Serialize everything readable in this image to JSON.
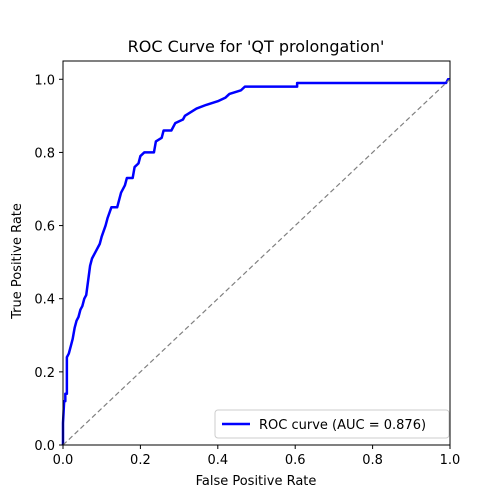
{
  "chart_data": {
    "type": "line",
    "title": "ROC Curve for 'QT prolongation'",
    "xlabel": "False Positive Rate",
    "ylabel": "True Positive Rate",
    "xlim": [
      0.0,
      1.0
    ],
    "ylim": [
      0.0,
      1.05
    ],
    "xticks": [
      "0.0",
      "0.2",
      "0.4",
      "0.6",
      "0.8",
      "1.0"
    ],
    "yticks": [
      "0.0",
      "0.2",
      "0.4",
      "0.6",
      "0.8",
      "1.0"
    ],
    "grid": false,
    "legend_position": "lower-right",
    "series": [
      {
        "name": "ROC curve (AUC = 0.876)",
        "color": "#0000ff",
        "style": "solid",
        "points": [
          [
            0.0,
            0.0
          ],
          [
            0.0,
            0.06
          ],
          [
            0.003,
            0.12
          ],
          [
            0.006,
            0.12
          ],
          [
            0.006,
            0.14
          ],
          [
            0.01,
            0.14
          ],
          [
            0.01,
            0.24
          ],
          [
            0.015,
            0.25
          ],
          [
            0.02,
            0.27
          ],
          [
            0.025,
            0.29
          ],
          [
            0.03,
            0.32
          ],
          [
            0.035,
            0.34
          ],
          [
            0.04,
            0.35
          ],
          [
            0.045,
            0.37
          ],
          [
            0.05,
            0.38
          ],
          [
            0.055,
            0.4
          ],
          [
            0.06,
            0.41
          ],
          [
            0.065,
            0.45
          ],
          [
            0.07,
            0.49
          ],
          [
            0.075,
            0.51
          ],
          [
            0.085,
            0.53
          ],
          [
            0.095,
            0.55
          ],
          [
            0.1,
            0.57
          ],
          [
            0.11,
            0.6
          ],
          [
            0.115,
            0.62
          ],
          [
            0.125,
            0.65
          ],
          [
            0.14,
            0.65
          ],
          [
            0.15,
            0.69
          ],
          [
            0.16,
            0.71
          ],
          [
            0.165,
            0.73
          ],
          [
            0.18,
            0.73
          ],
          [
            0.185,
            0.76
          ],
          [
            0.195,
            0.77
          ],
          [
            0.2,
            0.79
          ],
          [
            0.21,
            0.8
          ],
          [
            0.235,
            0.8
          ],
          [
            0.24,
            0.83
          ],
          [
            0.255,
            0.84
          ],
          [
            0.26,
            0.86
          ],
          [
            0.28,
            0.86
          ],
          [
            0.29,
            0.88
          ],
          [
            0.31,
            0.89
          ],
          [
            0.315,
            0.9
          ],
          [
            0.33,
            0.91
          ],
          [
            0.345,
            0.92
          ],
          [
            0.37,
            0.93
          ],
          [
            0.4,
            0.94
          ],
          [
            0.42,
            0.95
          ],
          [
            0.43,
            0.96
          ],
          [
            0.46,
            0.97
          ],
          [
            0.47,
            0.98
          ],
          [
            0.605,
            0.98
          ],
          [
            0.605,
            0.99
          ],
          [
            0.99,
            0.99
          ],
          [
            0.995,
            1.0
          ],
          [
            1.0,
            1.0
          ]
        ]
      },
      {
        "name": "",
        "color": "#808080",
        "style": "dashed",
        "points": [
          [
            0.0,
            0.0
          ],
          [
            1.0,
            1.0
          ]
        ]
      }
    ]
  }
}
